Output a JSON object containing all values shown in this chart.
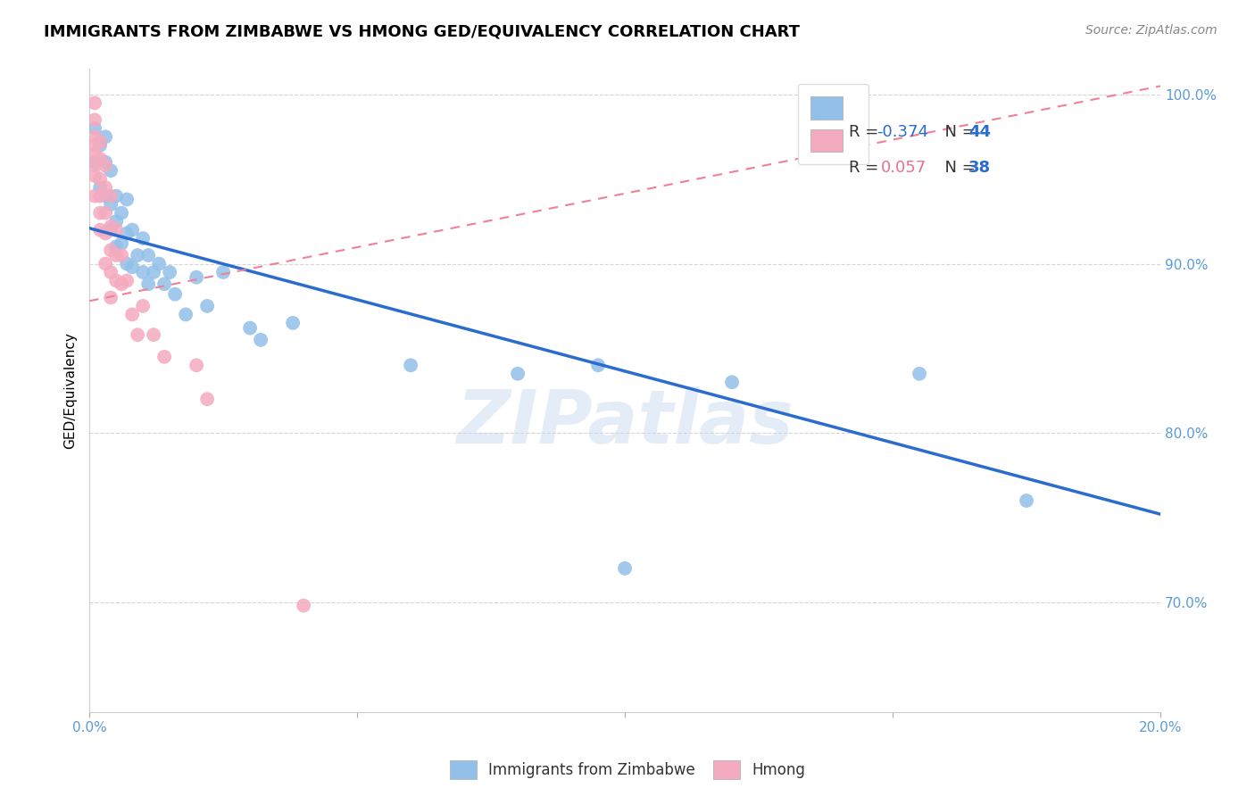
{
  "title": "IMMIGRANTS FROM ZIMBABWE VS HMONG GED/EQUIVALENCY CORRELATION CHART",
  "source": "Source: ZipAtlas.com",
  "ylabel": "GED/Equivalency",
  "r_zimbabwe": -0.374,
  "n_zimbabwe": 44,
  "r_hmong": 0.057,
  "n_hmong": 38,
  "color_zimbabwe": "#92C0E8",
  "color_hmong": "#F4AABF",
  "trendline_zimbabwe_color": "#2B6CCF",
  "trendline_hmong_color": "#F08098",
  "xlim": [
    0.0,
    0.2
  ],
  "ylim": [
    0.635,
    1.015
  ],
  "yticks": [
    0.7,
    0.8,
    0.9,
    1.0
  ],
  "ytick_labels": [
    "70.0%",
    "80.0%",
    "90.0%",
    "100.0%"
  ],
  "xticks": [
    0.0,
    0.05,
    0.1,
    0.15,
    0.2
  ],
  "xtick_labels": [
    "0.0%",
    "",
    "",
    "",
    "20.0%"
  ],
  "watermark": "ZIPatlas",
  "zimbabwe_x": [
    0.001,
    0.001,
    0.002,
    0.002,
    0.003,
    0.003,
    0.003,
    0.004,
    0.004,
    0.004,
    0.005,
    0.005,
    0.005,
    0.006,
    0.006,
    0.007,
    0.007,
    0.007,
    0.008,
    0.008,
    0.009,
    0.01,
    0.01,
    0.011,
    0.011,
    0.012,
    0.013,
    0.014,
    0.015,
    0.016,
    0.018,
    0.02,
    0.022,
    0.025,
    0.03,
    0.032,
    0.038,
    0.06,
    0.08,
    0.095,
    0.1,
    0.12,
    0.155,
    0.175
  ],
  "zimbabwe_y": [
    0.98,
    0.96,
    0.97,
    0.945,
    0.975,
    0.96,
    0.94,
    0.955,
    0.935,
    0.92,
    0.94,
    0.925,
    0.91,
    0.93,
    0.912,
    0.938,
    0.918,
    0.9,
    0.92,
    0.898,
    0.905,
    0.915,
    0.895,
    0.905,
    0.888,
    0.895,
    0.9,
    0.888,
    0.895,
    0.882,
    0.87,
    0.892,
    0.875,
    0.895,
    0.862,
    0.855,
    0.865,
    0.84,
    0.835,
    0.84,
    0.72,
    0.83,
    0.835,
    0.76
  ],
  "hmong_x": [
    0.001,
    0.001,
    0.001,
    0.001,
    0.001,
    0.001,
    0.001,
    0.001,
    0.002,
    0.002,
    0.002,
    0.002,
    0.002,
    0.002,
    0.003,
    0.003,
    0.003,
    0.003,
    0.003,
    0.004,
    0.004,
    0.004,
    0.004,
    0.004,
    0.005,
    0.005,
    0.005,
    0.006,
    0.006,
    0.007,
    0.008,
    0.009,
    0.01,
    0.012,
    0.014,
    0.02,
    0.022,
    0.04
  ],
  "hmong_y": [
    0.995,
    0.985,
    0.975,
    0.97,
    0.965,
    0.958,
    0.952,
    0.94,
    0.972,
    0.962,
    0.95,
    0.94,
    0.93,
    0.92,
    0.958,
    0.945,
    0.93,
    0.918,
    0.9,
    0.94,
    0.922,
    0.908,
    0.895,
    0.88,
    0.92,
    0.905,
    0.89,
    0.905,
    0.888,
    0.89,
    0.87,
    0.858,
    0.875,
    0.858,
    0.845,
    0.84,
    0.82,
    0.698
  ],
  "zim_trend_x0": 0.0,
  "zim_trend_y0": 0.921,
  "zim_trend_x1": 0.2,
  "zim_trend_y1": 0.752,
  "hmong_trend_x0": 0.0,
  "hmong_trend_y0": 0.878,
  "hmong_trend_x1": 0.2,
  "hmong_trend_y1": 1.005
}
